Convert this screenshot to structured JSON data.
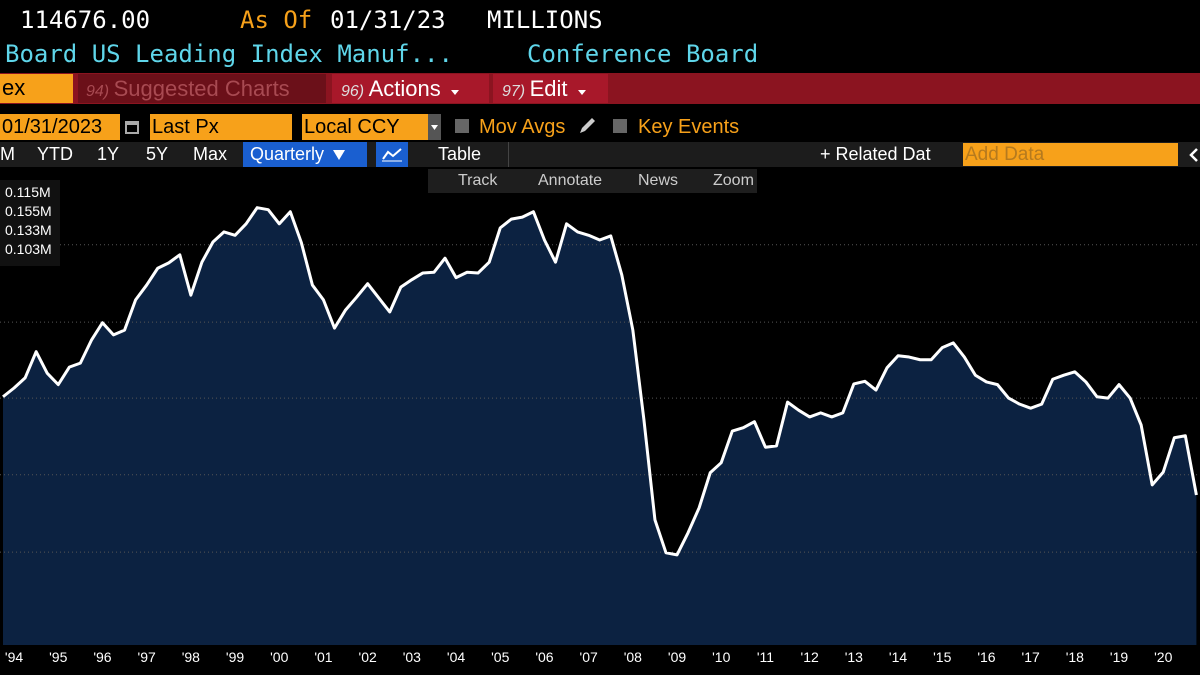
{
  "header": {
    "value": "114676.00",
    "as_of_label": "As Of",
    "as_of_date": "01/31/23",
    "units": "MILLIONS",
    "title": "Board US Leading Index Manuf...",
    "source": "Conference Board"
  },
  "toolbar": {
    "field": "ex",
    "suggested": {
      "num": "94)",
      "label": "Suggested Charts"
    },
    "actions": {
      "num": "96)",
      "label": "Actions"
    },
    "edit": {
      "num": "97)",
      "label": "Edit"
    }
  },
  "controls": {
    "date": "01/31/2023",
    "price": "Last Px",
    "currency": "Local CCY",
    "mov_avgs": "Mov Avgs",
    "key_events": "Key Events"
  },
  "ranges": {
    "items": [
      "M",
      "YTD",
      "1Y",
      "5Y",
      "Max"
    ],
    "frequency": "Quarterly",
    "table": "Table",
    "related": "+ Related Dat",
    "add_data": "Add Data"
  },
  "tools": [
    "Track",
    "Annotate",
    "News",
    "Zoom"
  ],
  "chart_data": {
    "type": "area",
    "legend_values": [
      "0.115M",
      "0.155M",
      "0.133M",
      "0.103M"
    ],
    "categories": [
      null,
      "'94",
      null,
      null,
      null,
      "'95",
      null,
      null,
      null,
      "'96",
      null,
      null,
      null,
      "'97",
      null,
      null,
      null,
      "'98",
      null,
      null,
      null,
      "'99",
      null,
      null,
      null,
      "'00",
      null,
      null,
      null,
      "'01",
      null,
      null,
      null,
      "'02",
      null,
      null,
      null,
      "'03",
      null,
      null,
      null,
      "'04",
      null,
      null,
      null,
      "'05",
      null,
      null,
      null,
      "'06",
      null,
      null,
      null,
      "'07",
      null,
      null,
      null,
      "'08",
      null,
      null,
      null,
      "'09",
      null,
      null,
      null,
      "'10",
      null,
      null,
      null,
      "'11",
      null,
      null,
      null,
      "'12",
      null,
      null,
      null,
      "'13",
      null,
      null,
      null,
      "'14",
      null,
      null,
      null,
      "'15",
      null,
      null,
      null,
      "'16",
      null,
      null,
      null,
      "'17",
      null,
      null,
      null,
      "'18",
      null,
      null,
      null,
      "'19",
      null,
      null,
      null,
      "'20",
      null,
      null,
      null
    ],
    "values": [
      126800,
      128100,
      129600,
      133500,
      130300,
      128600,
      131200,
      131800,
      135200,
      137800,
      136000,
      136700,
      141200,
      143400,
      145900,
      146700,
      147900,
      141900,
      146800,
      149800,
      151300,
      150800,
      152500,
      154900,
      154600,
      152500,
      154300,
      149700,
      143400,
      141200,
      137000,
      139700,
      141600,
      143600,
      141500,
      139400,
      143100,
      144200,
      145200,
      145300,
      147400,
      144500,
      145300,
      145200,
      146800,
      151900,
      153200,
      153500,
      154300,
      150100,
      146800,
      152500,
      151300,
      150800,
      150100,
      150700,
      144900,
      136700,
      123400,
      108500,
      103600,
      103300,
      106600,
      110300,
      115500,
      117000,
      121700,
      122200,
      123100,
      119300,
      119500,
      126000,
      124800,
      123800,
      124400,
      123800,
      124400,
      128700,
      129100,
      127800,
      131100,
      132900,
      132700,
      132300,
      132300,
      134100,
      134800,
      132700,
      130000,
      129000,
      128600,
      126600,
      125700,
      125100,
      125700,
      129400,
      130000,
      130500,
      129000,
      126800,
      126600,
      128600,
      126600,
      122600,
      113700,
      115600,
      120700,
      121000,
      112200
    ],
    "line_color": "#ffffff",
    "fill_color": "#0c2241",
    "ylim": [
      89900,
      160800
    ],
    "yticks": [
      103700,
      115200,
      126600,
      137900,
      149400
    ],
    "grid": true
  }
}
